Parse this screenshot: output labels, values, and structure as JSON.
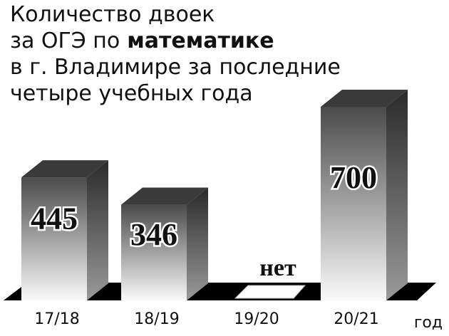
{
  "chart_data": {
    "type": "bar3d",
    "title": [
      [
        {
          "text": "Количество двоек"
        }
      ],
      [
        {
          "text": "за ОГЭ по"
        },
        {
          "text": "математике",
          "bold": true
        }
      ],
      [
        {
          "text": "в г. Владимире за последние"
        }
      ],
      [
        {
          "text": "четыре учебных года"
        }
      ]
    ],
    "x_label": "год",
    "categories": [
      "17/18",
      "18/19",
      "19/20",
      "20/21"
    ],
    "values": [
      445,
      346,
      null,
      700
    ],
    "value_labels": [
      "445",
      "346",
      "нет",
      "700"
    ]
  }
}
